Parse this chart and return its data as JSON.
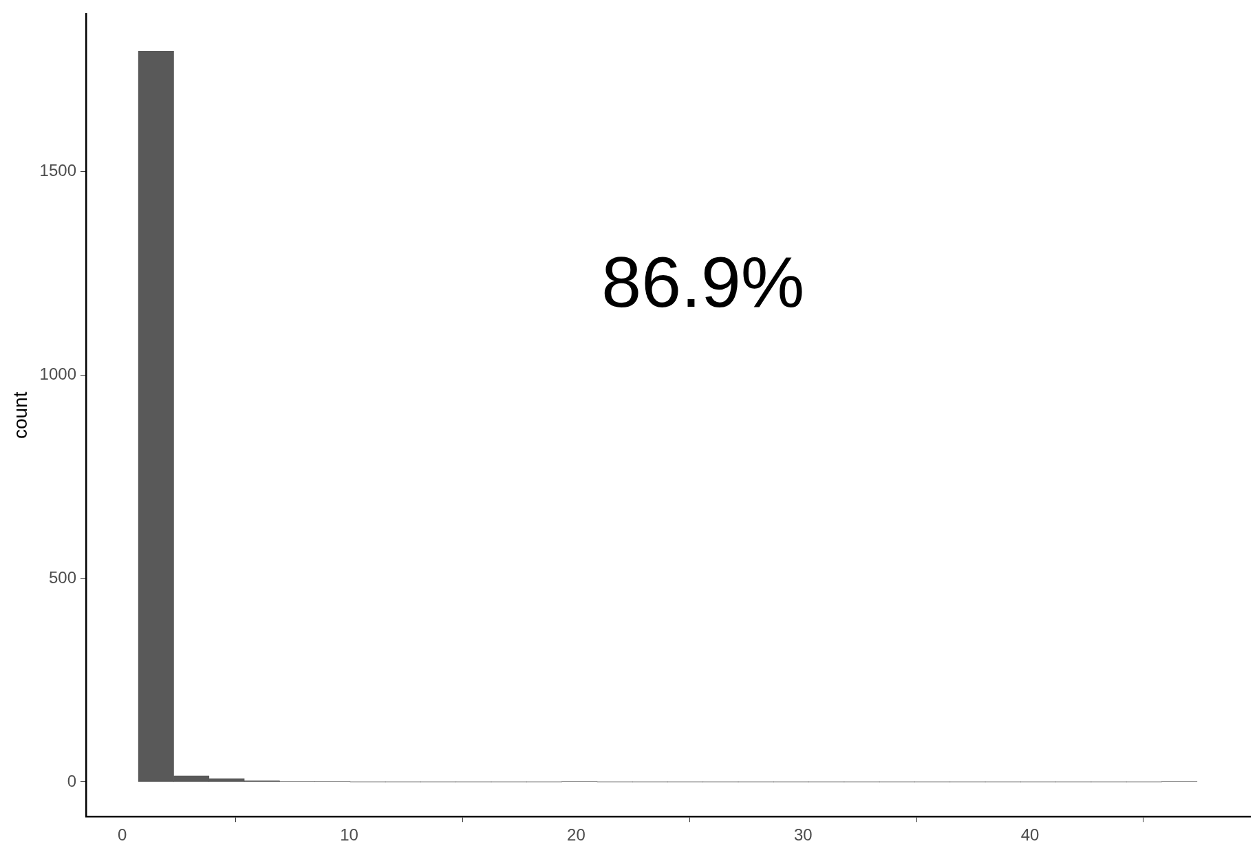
{
  "chart_data": {
    "type": "histogram",
    "ylabel": "count",
    "annotations": [
      "86.9%"
    ],
    "bins": [
      0.71,
      2.265,
      3.82,
      5.375,
      6.93,
      8.485,
      10.04,
      11.595,
      13.15,
      14.705,
      16.26,
      17.815,
      19.37,
      20.925,
      22.48,
      24.035,
      25.59,
      27.145,
      28.7,
      30.255,
      31.81,
      33.365,
      34.92,
      36.475,
      38.03,
      39.585,
      41.14,
      42.695,
      44.25,
      45.805,
      47.36
    ],
    "values": [
      1797,
      15,
      8,
      3,
      1,
      1,
      0,
      0,
      0,
      0,
      0,
      0,
      1,
      0,
      0,
      0,
      0,
      0,
      0,
      0,
      0,
      0,
      0,
      0,
      0,
      0,
      0,
      0,
      0,
      1
    ],
    "color": "#595959",
    "xlim": [
      -1.6,
      49.7
    ],
    "xticks": [
      0,
      10,
      20,
      30,
      40
    ],
    "ylim": [
      -85,
      1888
    ],
    "yticks": [
      0,
      500,
      1000,
      1500
    ],
    "grid": false,
    "legend": false
  }
}
